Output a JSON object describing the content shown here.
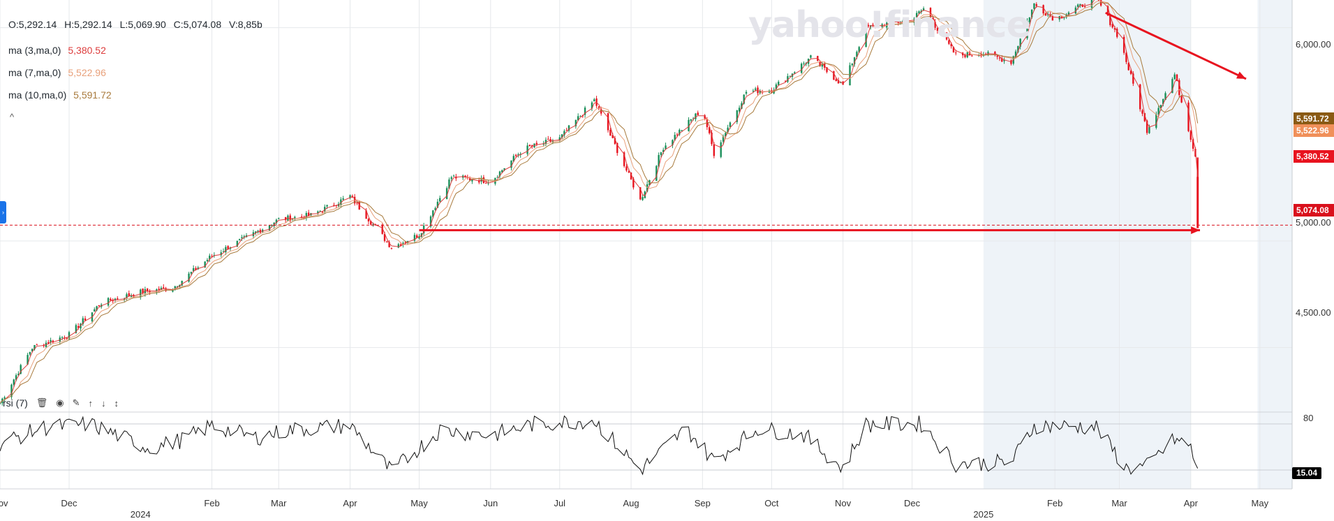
{
  "watermark": "yahoo!finance",
  "ohlc": {
    "open": "O:5,292.14",
    "high": "H:5,292.14",
    "low": "L:5,069.90",
    "close": "C:5,074.08",
    "volume": "V:8,85b"
  },
  "indicators": [
    {
      "name": "ma (3,ma,0)",
      "value": "5,380.52",
      "color": "#dd3c3c"
    },
    {
      "name": "ma (7,ma,0)",
      "value": "5,522.96",
      "color": "#e8a07a"
    },
    {
      "name": "ma (10,ma,0)",
      "value": "5,591.72",
      "color": "#a87a3c"
    }
  ],
  "collapse_glyph": "^",
  "rsi_panel": {
    "label": "rsi (7)",
    "current": "15.04",
    "ylim": [
      0,
      100
    ],
    "levels": [
      80,
      20
    ],
    "level_labels": [
      "80"
    ]
  },
  "price_tags": [
    {
      "label": "5,591.72",
      "value": 5591.72,
      "bg": "#8a5a14"
    },
    {
      "label": "5,522.96",
      "value": 5522.96,
      "bg": "#f0905a"
    },
    {
      "label": "5,380.52",
      "value": 5380.52,
      "bg": "#e8131f"
    },
    {
      "label": "5,074.08",
      "value": 5074.08,
      "bg": "#d9101c"
    }
  ],
  "chart_data": {
    "type": "line",
    "title": "",
    "price_axis": {
      "ticks": [
        4500,
        5000,
        6000
      ],
      "tick_labels": [
        "4,500.00",
        "5,000.00",
        "6,000.00"
      ],
      "ylim": [
        4230,
        6130
      ]
    },
    "x_axis": {
      "months": [
        "Nov",
        "Dec",
        "Feb",
        "Mar",
        "Apr",
        "May",
        "Jun",
        "Jul",
        "Aug",
        "Sep",
        "Oct",
        "Nov",
        "Dec",
        "Feb",
        "Mar",
        "Apr",
        "May"
      ],
      "month_dates": [
        "2023-11-01",
        "2023-12-01",
        "2024-02-01",
        "2024-03-01",
        "2024-04-01",
        "2024-05-01",
        "2024-06-01",
        "2024-07-01",
        "2024-08-01",
        "2024-09-01",
        "2024-10-01",
        "2024-11-01",
        "2024-12-01",
        "2025-02-01",
        "2025-03-01",
        "2025-04-01",
        "2025-05-01"
      ],
      "years": [
        "2024",
        "2025"
      ],
      "year_dates": [
        "2024-01-01",
        "2025-01-01"
      ],
      "xlim": [
        "2023-11-01",
        "2025-05-15"
      ]
    },
    "series": [
      {
        "type": "candlestick",
        "points": [
          [
            "2023-11-01",
            4240
          ],
          [
            "2023-11-15",
            4500
          ],
          [
            "2023-12-01",
            4560
          ],
          [
            "2023-12-15",
            4710
          ],
          [
            "2024-01-01",
            4760
          ],
          [
            "2024-01-15",
            4780
          ],
          [
            "2024-02-01",
            4930
          ],
          [
            "2024-02-15",
            5010
          ],
          [
            "2024-03-01",
            5100
          ],
          [
            "2024-03-15",
            5120
          ],
          [
            "2024-04-01",
            5210
          ],
          [
            "2024-04-19",
            4970
          ],
          [
            "2024-05-01",
            5030
          ],
          [
            "2024-05-15",
            5300
          ],
          [
            "2024-06-01",
            5280
          ],
          [
            "2024-06-15",
            5430
          ],
          [
            "2024-07-01",
            5480
          ],
          [
            "2024-07-16",
            5660
          ],
          [
            "2024-08-05",
            5190
          ],
          [
            "2024-08-15",
            5440
          ],
          [
            "2024-09-01",
            5620
          ],
          [
            "2024-09-06",
            5410
          ],
          [
            "2024-09-20",
            5700
          ],
          [
            "2024-10-01",
            5710
          ],
          [
            "2024-10-18",
            5860
          ],
          [
            "2024-11-01",
            5730
          ],
          [
            "2024-11-11",
            6000
          ],
          [
            "2024-12-01",
            6040
          ],
          [
            "2024-12-06",
            6090
          ],
          [
            "2024-12-20",
            5870
          ],
          [
            "2025-01-01",
            5880
          ],
          [
            "2025-01-13",
            5840
          ],
          [
            "2025-01-23",
            6110
          ],
          [
            "2025-02-01",
            6040
          ],
          [
            "2025-02-19",
            6140
          ],
          [
            "2025-03-01",
            5950
          ],
          [
            "2025-03-13",
            5520
          ],
          [
            "2025-03-25",
            5780
          ],
          [
            "2025-04-03",
            5400
          ],
          [
            "2025-04-04",
            5074
          ]
        ]
      },
      {
        "name": "ma (3,ma,0)",
        "color": "#dd3c3c",
        "last": 5380.52
      },
      {
        "name": "ma (7,ma,0)",
        "color": "#e8a07a",
        "last": 5522.96
      },
      {
        "name": "ma (10,ma,0)",
        "color": "#a87a3c",
        "last": 5591.72
      }
    ],
    "rsi_series": {
      "name": "rsi (7)",
      "points": [
        [
          "2023-11-01",
          55
        ],
        [
          "2023-11-20",
          75
        ],
        [
          "2023-12-10",
          80
        ],
        [
          "2024-01-05",
          48
        ],
        [
          "2024-01-20",
          60
        ],
        [
          "2024-02-01",
          78
        ],
        [
          "2024-02-20",
          62
        ],
        [
          "2024-03-05",
          72
        ],
        [
          "2024-04-01",
          78
        ],
        [
          "2024-04-19",
          18
        ],
        [
          "2024-05-10",
          72
        ],
        [
          "2024-06-01",
          65
        ],
        [
          "2024-06-20",
          80
        ],
        [
          "2024-07-16",
          85
        ],
        [
          "2024-08-05",
          20
        ],
        [
          "2024-08-25",
          74
        ],
        [
          "2024-09-06",
          32
        ],
        [
          "2024-09-25",
          74
        ],
        [
          "2024-10-15",
          66
        ],
        [
          "2024-11-01",
          22
        ],
        [
          "2024-11-11",
          79
        ],
        [
          "2024-12-05",
          80
        ],
        [
          "2024-12-20",
          28
        ],
        [
          "2025-01-13",
          30
        ],
        [
          "2025-01-23",
          78
        ],
        [
          "2025-02-19",
          76
        ],
        [
          "2025-03-04",
          22
        ],
        [
          "2025-03-13",
          25
        ],
        [
          "2025-03-25",
          60
        ],
        [
          "2025-04-01",
          50
        ],
        [
          "2025-04-04",
          15
        ]
      ]
    },
    "annotations": [
      {
        "type": "dashed-line",
        "y": 5074.08
      },
      {
        "type": "arrow",
        "from": [
          "2024-05-01",
          5050
        ],
        "to": [
          "2025-04-05",
          5050
        ]
      },
      {
        "type": "arrow",
        "from": [
          "2025-02-23",
          6070
        ],
        "to": [
          "2025-04-25",
          5760
        ]
      },
      {
        "type": "vertical-line",
        "date": "2025-04-04",
        "from": 5300,
        "to": 5060
      }
    ],
    "shaded_region": [
      "2025-01-01",
      "2025-04-01"
    ],
    "grid": true
  }
}
